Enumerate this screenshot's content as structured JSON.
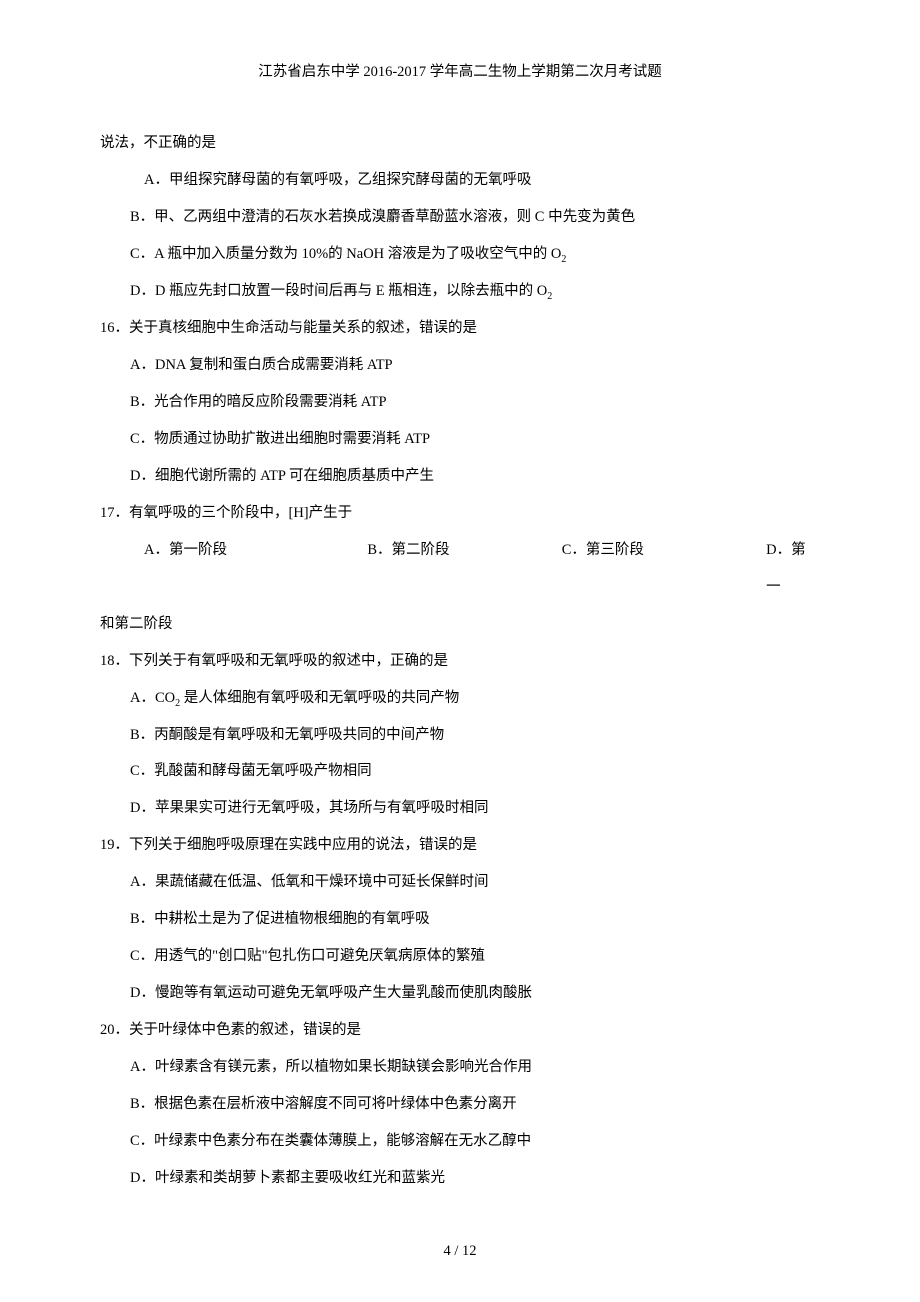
{
  "colors": {
    "background": "#ffffff",
    "text": "#000000"
  },
  "typography": {
    "base_font_size": 14.5,
    "line_height": 2.55,
    "font_family": "SimSun"
  },
  "header": {
    "title": "江苏省启东中学 2016-2017 学年高二生物上学期第二次月考试题"
  },
  "footer": {
    "page": "4 / 12"
  },
  "q15": {
    "continuation": "说法，不正确的是",
    "a": "A．甲组探究酵母菌的有氧呼吸，乙组探究酵母菌的无氧呼吸",
    "b": "B．甲、乙两组中澄清的石灰水若换成溴麝香草酚蓝水溶液，则 C 中先变为黄色",
    "c_pre": "C．A 瓶中加入质量分数为 10%的 NaOH 溶液是为了吸收空气中的 O",
    "c_sub": "2",
    "d_pre": "D．D 瓶应先封口放置一段时间后再与 E 瓶相连，以除去瓶中的 O",
    "d_sub": "2"
  },
  "q16": {
    "stem": "16．关于真核细胞中生命活动与能量关系的叙述，错误的是",
    "a": "A．DNA 复制和蛋白质合成需要消耗 ATP",
    "b": "B．光合作用的暗反应阶段需要消耗 ATP",
    "c": "C．物质通过协助扩散进出细胞时需要消耗 ATP",
    "d": "D．细胞代谢所需的 ATP 可在细胞质基质中产生"
  },
  "q17": {
    "stem": "17．有氧呼吸的三个阶段中，[H]产生于",
    "a": "A．第一阶段",
    "b": "B．第二阶段",
    "c": "C．第三阶段",
    "d": "D．第一",
    "cont": "和第二阶段"
  },
  "q18": {
    "stem": "18．下列关于有氧呼吸和无氧呼吸的叙述中，正确的是",
    "a_pre": "A．CO",
    "a_sub": "2",
    "a_post": " 是人体细胞有氧呼吸和无氧呼吸的共同产物",
    "b": "B．丙酮酸是有氧呼吸和无氧呼吸共同的中间产物",
    "c": "C．乳酸菌和酵母菌无氧呼吸产物相同",
    "d": "D．苹果果实可进行无氧呼吸，其场所与有氧呼吸时相同"
  },
  "q19": {
    "stem": "19．下列关于细胞呼吸原理在实践中应用的说法，错误的是",
    "a": "A．果蔬储藏在低温、低氧和干燥环境中可延长保鲜时间",
    "b": "B．中耕松土是为了促进植物根细胞的有氧呼吸",
    "c": "C．用透气的\"创口贴\"包扎伤口可避免厌氧病原体的繁殖",
    "d": "D．慢跑等有氧运动可避免无氧呼吸产生大量乳酸而使肌肉酸胀"
  },
  "q20": {
    "stem": "20．关于叶绿体中色素的叙述，错误的是",
    "a": "A．叶绿素含有镁元素，所以植物如果长期缺镁会影响光合作用",
    "b": "B．根据色素在层析液中溶解度不同可将叶绿体中色素分离开",
    "c": "C．叶绿素中色素分布在类囊体薄膜上，能够溶解在无水乙醇中",
    "d": "D．叶绿素和类胡萝卜素都主要吸收红光和蓝紫光"
  }
}
